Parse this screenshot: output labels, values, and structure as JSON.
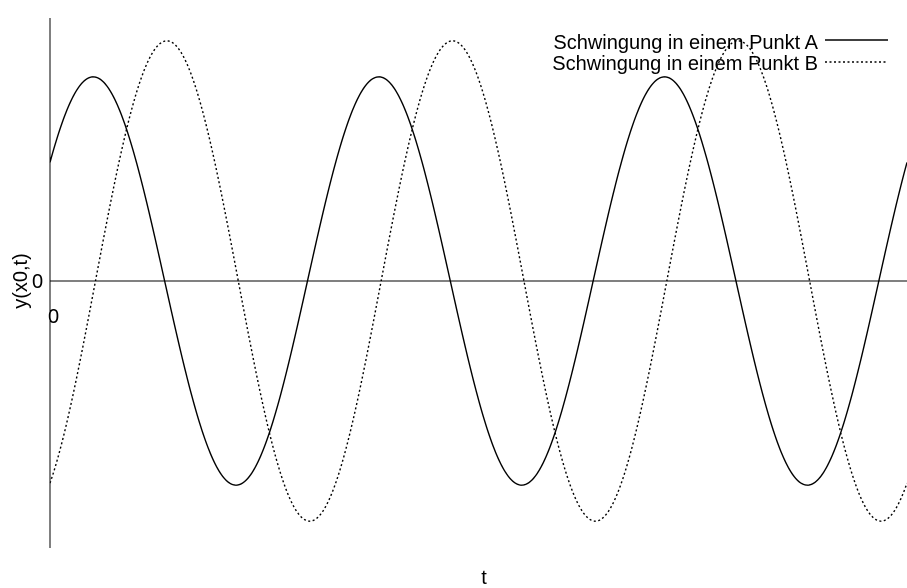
{
  "chart_data": {
    "type": "line",
    "xlabel": "t",
    "ylabel": "y(x0,t)",
    "x_ticks": [
      {
        "value": 0,
        "label": "0"
      }
    ],
    "y_ticks": [
      {
        "value": 0,
        "label": "0"
      }
    ],
    "xlim": [
      0,
      3.0
    ],
    "ylim": [
      -1.17,
      1.17
    ],
    "grid": false,
    "legend": "top-right",
    "series": [
      {
        "name": "Schwingung in einem Punkt A",
        "line_style": "solid",
        "color": "#000000",
        "amplitude": 0.85,
        "period": 1.0,
        "phase_rad": 0.62
      },
      {
        "name": "Schwingung in einem Punkt B",
        "line_style": "dotted",
        "color": "#000000",
        "amplitude": 1.0,
        "period": 1.0,
        "phase_rad": -1.0
      }
    ]
  }
}
